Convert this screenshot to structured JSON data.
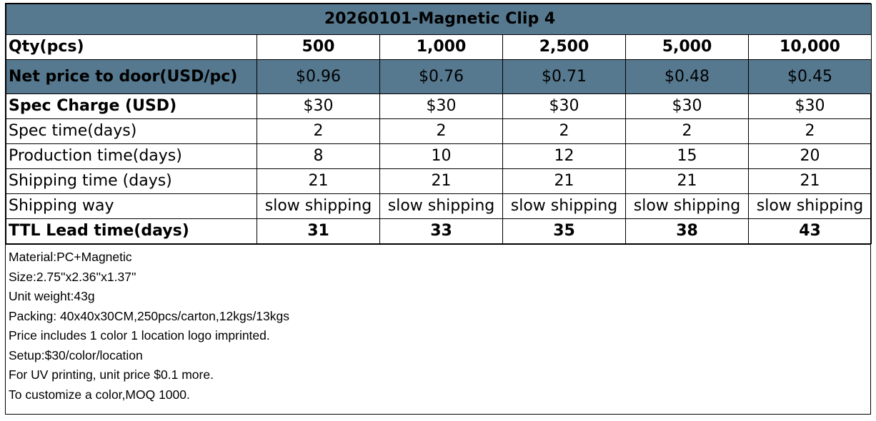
{
  "title": "20260101-Magnetic Clip 4",
  "colors": {
    "header_band": "#56798f",
    "border": "#000000",
    "background": "#ffffff"
  },
  "table": {
    "quantities": {
      "label": "Qty(pcs)",
      "values": [
        "500",
        "1,000",
        "2,500",
        "5,000",
        "10,000"
      ]
    },
    "net_price": {
      "label": "Net price to door(USD/pc)",
      "values": [
        "$0.96",
        "$0.76",
        "$0.71",
        "$0.48",
        "$0.45"
      ]
    },
    "spec_charge": {
      "label": "Spec Charge (USD)",
      "values": [
        "$30",
        "$30",
        "$30",
        "$30",
        "$30"
      ]
    },
    "spec_time": {
      "label": "Spec time(days)",
      "values": [
        "2",
        "2",
        "2",
        "2",
        "2"
      ]
    },
    "production_time": {
      "label": "Production time(days)",
      "values": [
        "8",
        "10",
        "12",
        "15",
        "20"
      ]
    },
    "shipping_time": {
      "label": "Shipping time (days)",
      "values": [
        "21",
        "21",
        "21",
        "21",
        "21"
      ]
    },
    "shipping_way": {
      "label": "Shipping way",
      "values": [
        "slow shipping",
        "slow shipping",
        "slow shipping",
        "slow shipping",
        "slow shipping"
      ]
    },
    "ttl_lead_time": {
      "label": "TTL Lead time(days)",
      "values": [
        "31",
        "33",
        "35",
        "38",
        "43"
      ]
    }
  },
  "notes": [
    "Material:PC+Magnetic",
    "Size:2.75''x2.36''x1.37''",
    "Unit weight:43g",
    "Packing: 40x40x30CM,250pcs/carton,12kgs/13kgs",
    "Price includes 1 color 1 location logo imprinted.",
    "Setup:$30/color/location",
    "For UV printing, unit price $0.1 more.",
    "To customize a color,MOQ 1000."
  ]
}
